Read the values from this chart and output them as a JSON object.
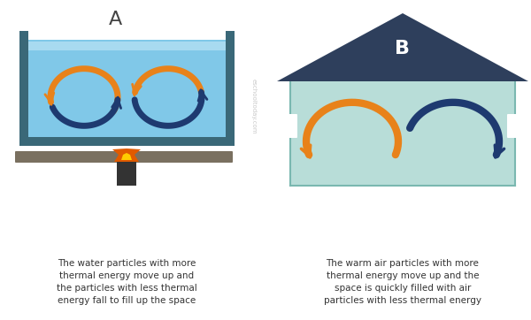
{
  "bg_color": "#ffffff",
  "orange_color": "#e8821a",
  "blue_color": "#1e3a70",
  "water_color": "#80c8e8",
  "water_top_color": "#a8daf0",
  "room_color": "#b8ddd8",
  "tank_color": "#3a6878",
  "roof_color": "#2e3f5c",
  "stove_color": "#7a7060",
  "burner_color": "#333333",
  "flame_outer": "#e05a00",
  "flame_inner": "#ffcc00",
  "label_A": "A",
  "label_B": "B",
  "text_A": "The water particles with more\nthermal energy move up and\nthe particles with less thermal\nenergy fall to fill up the space",
  "text_B": "The warm air particles with more\nthermal energy move up and the\nspace is quickly filled with air\nparticles with less thermal energy",
  "watermark": "eschooltoday.com",
  "text_color": "#333333",
  "wm_color": "#bbbbbb"
}
